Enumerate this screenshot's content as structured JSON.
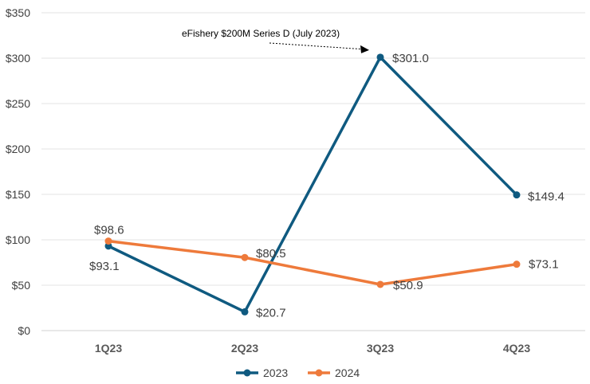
{
  "chart_data": {
    "type": "line",
    "title": "",
    "xlabel": "",
    "ylabel": "",
    "categories": [
      "1Q23",
      "2Q23",
      "3Q23",
      "4Q23"
    ],
    "ylim": [
      0,
      350
    ],
    "yticks": [
      0,
      50,
      100,
      150,
      200,
      250,
      300,
      350
    ],
    "ytick_labels": [
      "$0",
      "$50",
      "$100",
      "$150",
      "$200",
      "$250",
      "$300",
      "$350"
    ],
    "grid": true,
    "legend_position": "bottom",
    "series": [
      {
        "name": "2023",
        "color": "#0f5a80",
        "values": [
          93.1,
          20.7,
          301.0,
          149.4
        ],
        "labels": [
          "$93.1",
          "$20.7",
          "$301.0",
          "$149.4"
        ]
      },
      {
        "name": "2024",
        "color": "#ee7a3b",
        "values": [
          98.6,
          80.5,
          50.9,
          73.1
        ],
        "labels": [
          "$98.6",
          "$80.5",
          "$50.9",
          "$73.1"
        ]
      }
    ],
    "annotation": {
      "text": "eFishery $200M Series D (July 2023)",
      "target_category": "3Q23",
      "target_value": 301.0
    }
  }
}
